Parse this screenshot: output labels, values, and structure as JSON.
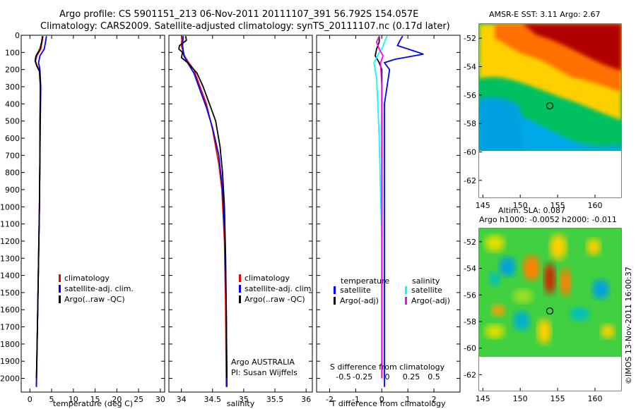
{
  "header": {
    "line1": "Argo profile: CS 5901151_213 06-Nov-2011 20111107_391 56.792S 154.057E",
    "line2": "Climatology: CARS2009. Satellite-adjusted climatology: synTS_20111107.nc (0.17d later)"
  },
  "sst_title": "AMSR-E SST: 3.11 Argo: 2.67",
  "sla_title1": "Altim. SLA: 0.087",
  "sla_title2": "Argo h1000: -0.0052 h2000: -0.011",
  "credit": "©IMOS 13-Nov-2011 16:00:37",
  "colors": {
    "climatology": "#ff0000",
    "satellite": "#0000ff",
    "argo": "#000000",
    "s_satellite": "#00ffff",
    "s_argo": "#ff00ff"
  },
  "chart_data": [
    {
      "type": "line",
      "xlabel": "temperature (deg C)",
      "ylabel": "",
      "xlim": [
        -2,
        31
      ],
      "ylim": [
        2080,
        0
      ],
      "xticks": [
        0,
        5,
        10,
        15,
        20,
        25,
        30
      ],
      "yticks": [
        0,
        100,
        200,
        300,
        400,
        500,
        600,
        700,
        800,
        900,
        1000,
        1100,
        1200,
        1300,
        1400,
        1500,
        1600,
        1700,
        1800,
        1900,
        2000
      ],
      "legend": [
        "climatology",
        "satellite-adj. clim.",
        "Argo(..raw -QC)"
      ],
      "series": [
        {
          "name": "climatology",
          "color": "#ff0000",
          "points": [
            [
              3.0,
              5
            ],
            [
              2.8,
              40
            ],
            [
              2.5,
              80
            ],
            [
              1.6,
              120
            ],
            [
              1.3,
              150
            ],
            [
              1.7,
              180
            ],
            [
              2.3,
              210
            ],
            [
              2.4,
              300
            ],
            [
              2.35,
              500
            ],
            [
              2.3,
              700
            ],
            [
              2.2,
              1000
            ],
            [
              2.0,
              1300
            ],
            [
              1.8,
              1600
            ],
            [
              1.6,
              1900
            ],
            [
              1.5,
              2050
            ]
          ]
        },
        {
          "name": "satellite-adj. clim.",
          "color": "#0000ff",
          "points": [
            [
              3.8,
              5
            ],
            [
              3.6,
              40
            ],
            [
              3.3,
              80
            ],
            [
              2.3,
              120
            ],
            [
              2.0,
              160
            ],
            [
              2.3,
              200
            ],
            [
              2.5,
              300
            ],
            [
              2.4,
              500
            ],
            [
              2.3,
              700
            ],
            [
              2.2,
              1000
            ],
            [
              2.0,
              1300
            ],
            [
              1.8,
              1600
            ],
            [
              1.6,
              1900
            ],
            [
              1.5,
              2050
            ]
          ]
        },
        {
          "name": "Argo(..raw -QC)",
          "color": "#000000",
          "points": [
            [
              2.9,
              5
            ],
            [
              2.7,
              40
            ],
            [
              2.3,
              80
            ],
            [
              1.4,
              120
            ],
            [
              1.2,
              150
            ],
            [
              1.6,
              180
            ],
            [
              2.2,
              210
            ],
            [
              2.4,
              300
            ],
            [
              2.3,
              500
            ],
            [
              2.3,
              700
            ],
            [
              2.2,
              1000
            ],
            [
              2.0,
              1300
            ],
            [
              1.8,
              1600
            ],
            [
              1.6,
              1900
            ],
            [
              1.5,
              2000
            ]
          ]
        }
      ]
    },
    {
      "type": "line",
      "xlabel": "salinity",
      "ylabel": "",
      "xlim": [
        33.8,
        36.1
      ],
      "ylim": [
        2080,
        0
      ],
      "xticks": [
        34,
        34.5,
        35,
        35.5,
        36
      ],
      "legend": [
        "climatology",
        "satellite-adj. clim.",
        "Argo(..raw -QC)"
      ],
      "annotation1": "Argo AUSTRALIA",
      "annotation2": "PI: Susan Wijffels",
      "series": [
        {
          "name": "climatology",
          "color": "#ff0000",
          "points": [
            [
              34.01,
              5
            ],
            [
              34.0,
              60
            ],
            [
              34.05,
              120
            ],
            [
              34.1,
              150
            ],
            [
              34.2,
              200
            ],
            [
              34.3,
              300
            ],
            [
              34.4,
              400
            ],
            [
              34.5,
              550
            ],
            [
              34.6,
              750
            ],
            [
              34.65,
              900
            ],
            [
              34.69,
              1200
            ],
            [
              34.71,
              1600
            ],
            [
              34.72,
              2050
            ]
          ]
        },
        {
          "name": "satellite-adj. clim.",
          "color": "#0000ff",
          "points": [
            [
              34.03,
              5
            ],
            [
              34.02,
              60
            ],
            [
              34.04,
              120
            ],
            [
              34.1,
              160
            ],
            [
              34.2,
              220
            ],
            [
              34.3,
              320
            ],
            [
              34.4,
              420
            ],
            [
              34.5,
              540
            ],
            [
              34.6,
              700
            ],
            [
              34.66,
              900
            ],
            [
              34.7,
              1200
            ],
            [
              34.72,
              1600
            ],
            [
              34.73,
              2050
            ]
          ]
        },
        {
          "name": "Argo(..raw -QC)",
          "color": "#000000",
          "points": [
            [
              34.07,
              5
            ],
            [
              34.08,
              30
            ],
            [
              33.97,
              60
            ],
            [
              33.96,
              80
            ],
            [
              34.02,
              100
            ],
            [
              34.0,
              130
            ],
            [
              34.1,
              160
            ],
            [
              34.25,
              220
            ],
            [
              34.35,
              300
            ],
            [
              34.45,
              400
            ],
            [
              34.55,
              500
            ],
            [
              34.62,
              650
            ],
            [
              34.66,
              800
            ],
            [
              34.69,
              1000
            ],
            [
              34.71,
              1300
            ],
            [
              34.72,
              1600
            ],
            [
              34.73,
              2000
            ]
          ]
        }
      ]
    },
    {
      "type": "line",
      "xlabel": "T difference from climatology",
      "xlabel2": "S difference from climatology",
      "xlim": [
        -2.5,
        3
      ],
      "ylim": [
        2080,
        0
      ],
      "xticks": [
        -2,
        -1,
        0,
        1,
        2
      ],
      "sticks": [
        "-0.5",
        "-0.25",
        "0",
        "0.25",
        "0.5"
      ],
      "legend_t_head": "temperature",
      "legend_s_head": "salinity",
      "legend": [
        "satellite",
        "Argo(-adj)",
        "satellite",
        "Argo(-adj)"
      ],
      "series": [
        {
          "name": "satellite",
          "color": "#0000ff",
          "points": [
            [
              0.8,
              5
            ],
            [
              0.7,
              30
            ],
            [
              0.6,
              60
            ],
            [
              1.2,
              90
            ],
            [
              1.6,
              110
            ],
            [
              0.5,
              140
            ],
            [
              0.1,
              160
            ],
            [
              0.3,
              200
            ],
            [
              0.1,
              400
            ],
            [
              0.1,
              700
            ],
            [
              0.1,
              1000
            ],
            [
              0.1,
              1300
            ],
            [
              0.1,
              1600
            ],
            [
              0.1,
              1900
            ],
            [
              0.1,
              2050
            ]
          ]
        },
        {
          "name": "Argo(-adj)",
          "color": "#000000",
          "points": [
            [
              -0.1,
              5
            ],
            [
              -0.1,
              40
            ],
            [
              -0.2,
              80
            ],
            [
              -0.25,
              120
            ],
            [
              -0.1,
              160
            ],
            [
              0.0,
              200
            ],
            [
              0.0,
              400
            ],
            [
              0.0,
              700
            ],
            [
              0.0,
              1000
            ],
            [
              0.0,
              1300
            ],
            [
              0.0,
              1600
            ],
            [
              0.0,
              1900
            ],
            [
              0.0,
              2000
            ]
          ]
        },
        {
          "name": "satellite",
          "color": "#00ffff",
          "points": [
            [
              0.2,
              5
            ],
            [
              0.1,
              40
            ],
            [
              0.0,
              80
            ],
            [
              -0.1,
              100
            ],
            [
              -0.3,
              160
            ],
            [
              -0.2,
              250
            ],
            [
              -0.15,
              400
            ],
            [
              -0.1,
              600
            ],
            [
              -0.05,
              900
            ],
            [
              0.0,
              1200
            ],
            [
              0.0,
              1600
            ],
            [
              0.0,
              2000
            ]
          ]
        },
        {
          "name": "Argo(-adj)",
          "color": "#ff00ff",
          "points": [
            [
              -0.1,
              5
            ],
            [
              -0.2,
              40
            ],
            [
              -0.1,
              80
            ],
            [
              0.05,
              120
            ],
            [
              -0.05,
              160
            ],
            [
              0.0,
              300
            ],
            [
              0.0,
              600
            ],
            [
              0.0,
              1000
            ],
            [
              0.0,
              1500
            ],
            [
              0.0,
              2000
            ]
          ]
        }
      ]
    }
  ],
  "maps": [
    {
      "title": "AMSR-E SST: 3.11 Argo: 2.67",
      "xticks": [
        145,
        150,
        155,
        160
      ],
      "yticks": [
        -52,
        -54,
        -56,
        -58,
        -60,
        -62
      ],
      "xlim": [
        144.5,
        163.5
      ],
      "ylim": [
        -63.2,
        -51
      ]
    },
    {
      "title": "Altim. SLA: 0.087",
      "xticks": [
        145,
        150,
        155,
        160
      ],
      "yticks": [
        -52,
        -54,
        -56,
        -58,
        -60,
        -62
      ],
      "xlim": [
        144.5,
        163.5
      ],
      "ylim": [
        -63.2,
        -51
      ]
    }
  ]
}
